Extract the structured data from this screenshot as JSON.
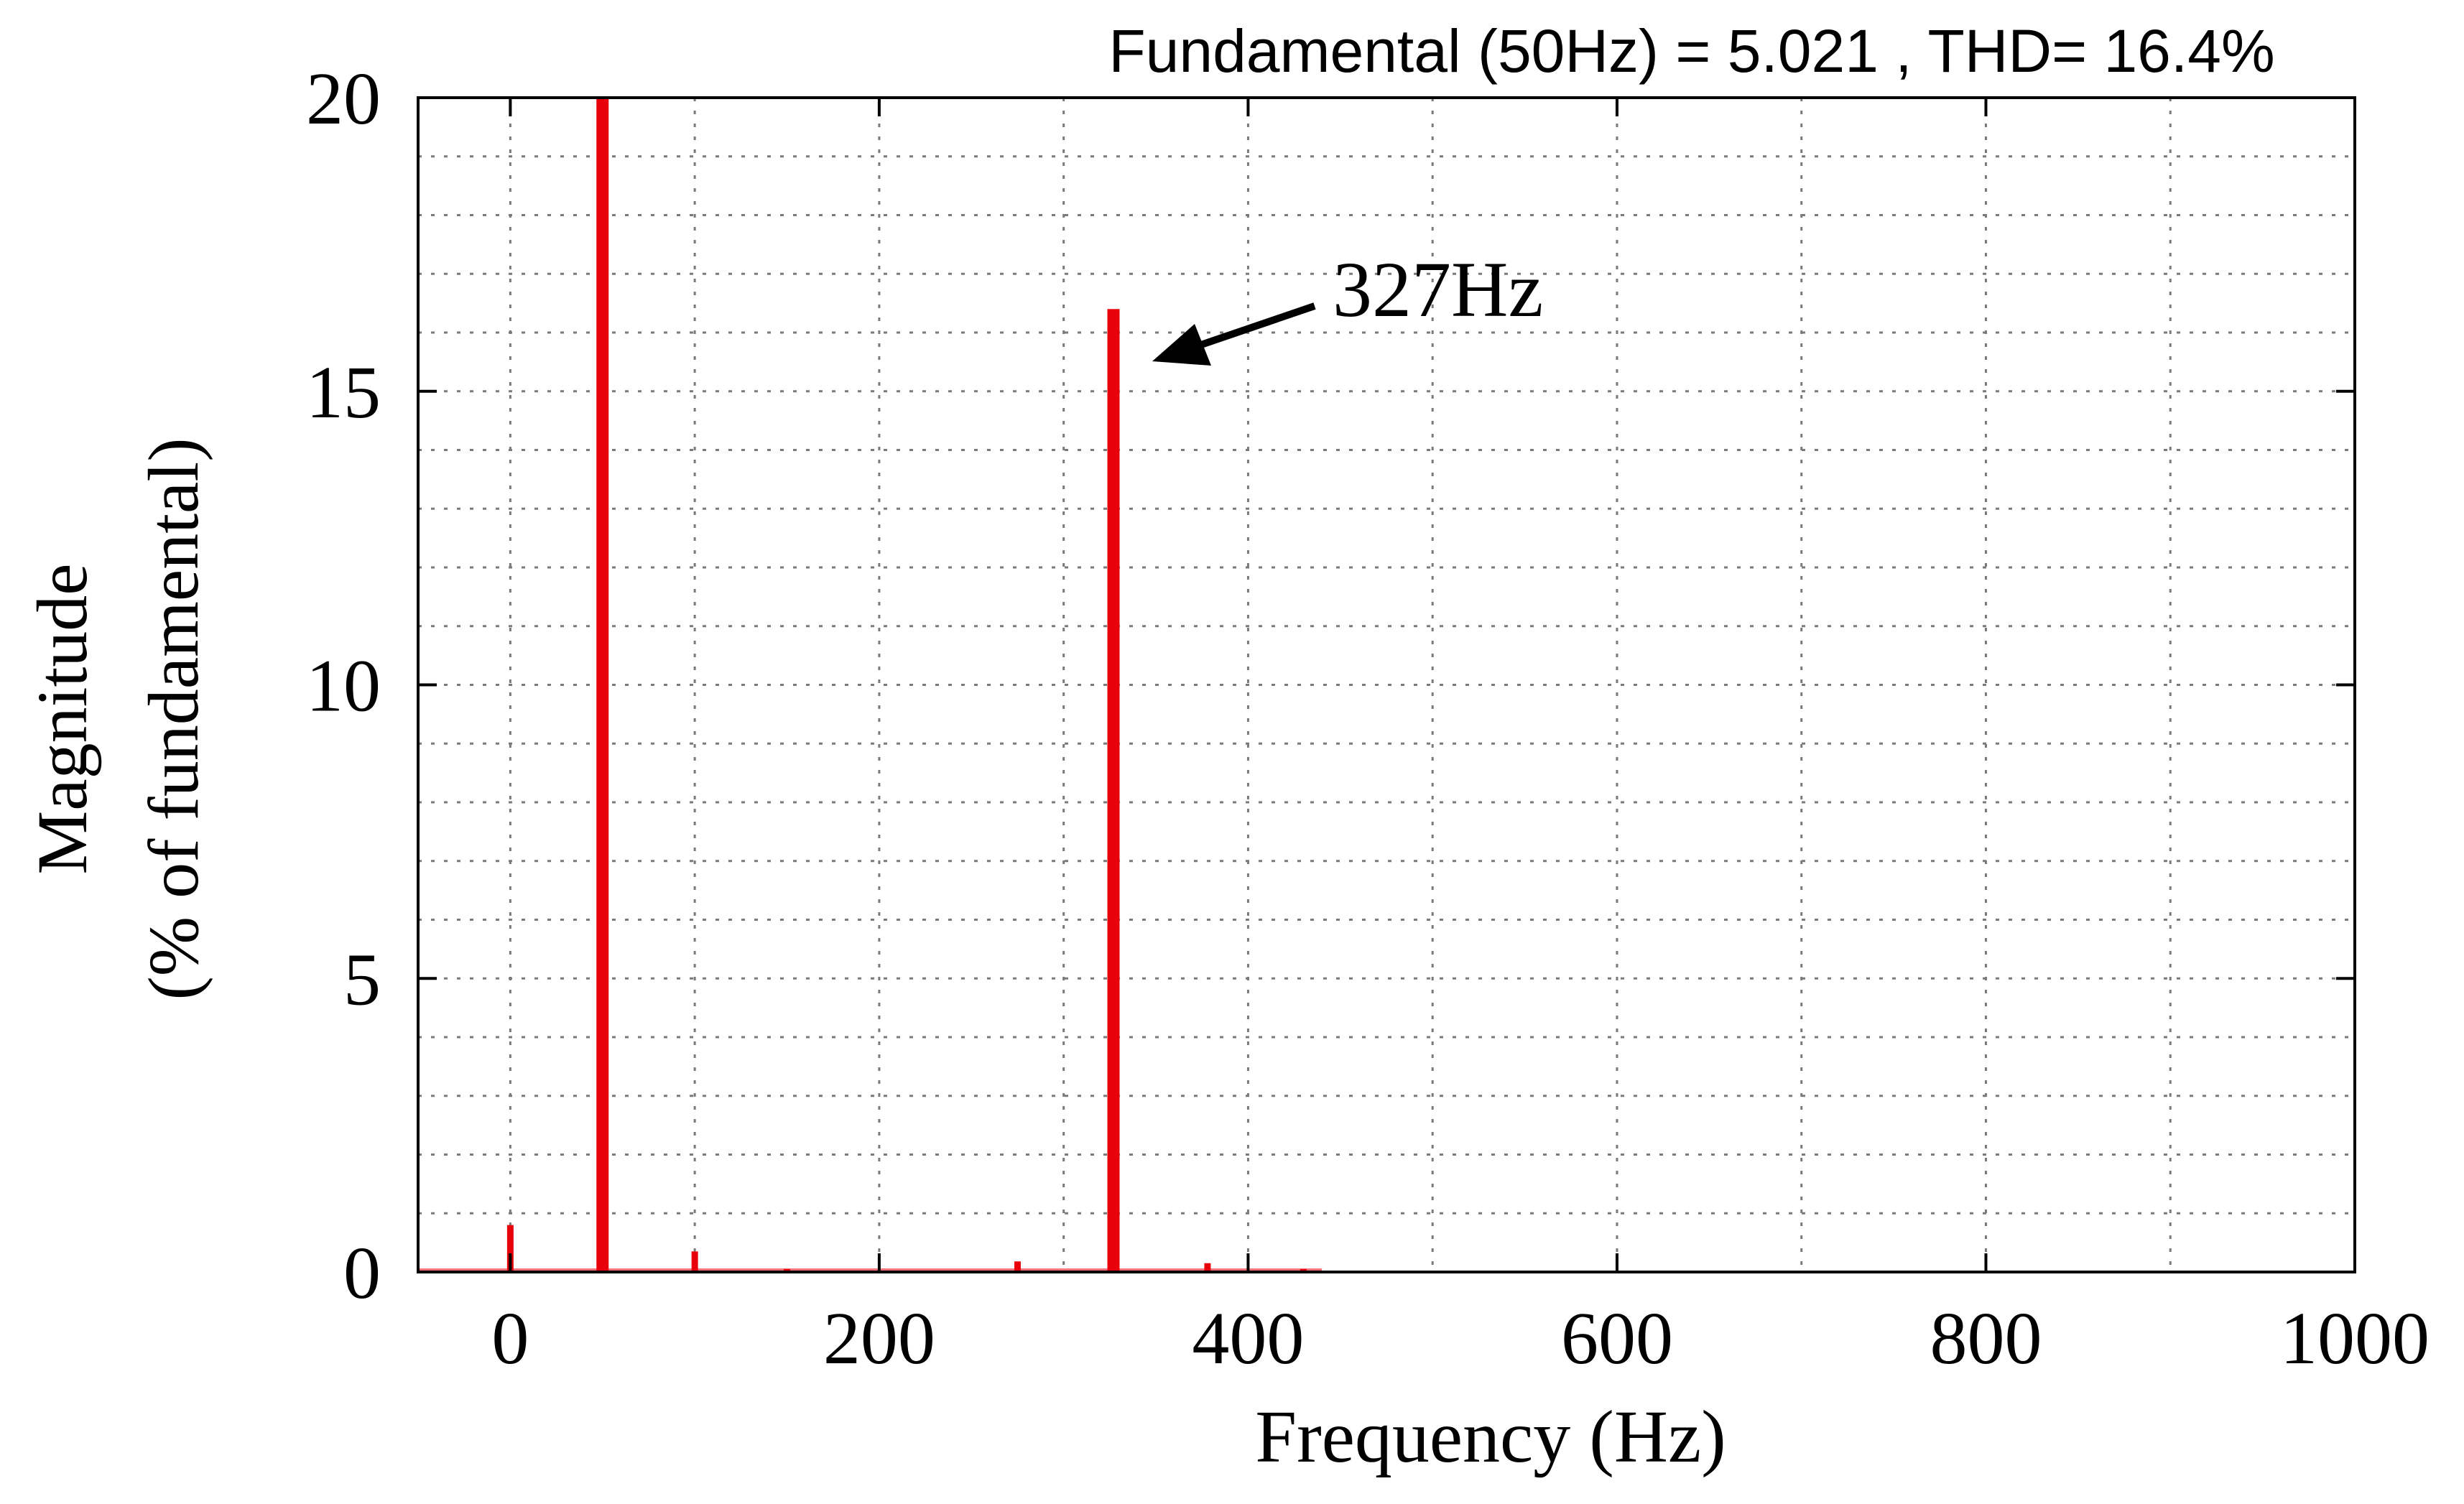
{
  "chart_data": {
    "type": "bar",
    "title": "Fundamental (50Hz) = 5.021 , THD= 16.4%",
    "xlabel": "Frequency (Hz)",
    "ylabel_line1": "Magnitude",
    "ylabel_line2": "(% of fundamental)",
    "xlim": [
      -50,
      1000
    ],
    "ylim": [
      0,
      20
    ],
    "xticks": [
      0,
      200,
      400,
      600,
      800,
      1000
    ],
    "xtick_labels": [
      "0",
      "200",
      "400",
      "600",
      "800",
      "1000"
    ],
    "yticks": [
      0,
      5,
      10,
      15,
      20
    ],
    "ytick_labels": [
      "0",
      "5",
      "10",
      "15",
      "20"
    ],
    "grid": true,
    "bar_color": "#e8000b",
    "annotation": {
      "text": "327Hz",
      "x": 327,
      "y": 16.4
    },
    "series": [
      {
        "x": [
          0,
          50,
          100,
          150,
          275,
          327,
          378,
          430
        ],
        "values": [
          0.8,
          20,
          0.35,
          0.05,
          0.18,
          16.4,
          0.15,
          0.05
        ]
      }
    ]
  }
}
